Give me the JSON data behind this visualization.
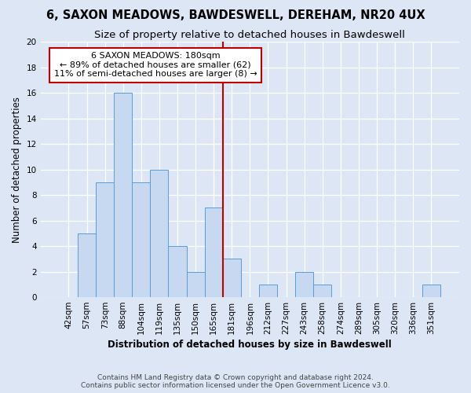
{
  "title_line1": "6, SAXON MEADOWS, BAWDESWELL, DEREHAM, NR20 4UX",
  "title_line2": "Size of property relative to detached houses in Bawdeswell",
  "xlabel": "Distribution of detached houses by size in Bawdeswell",
  "ylabel": "Number of detached properties",
  "categories": [
    "42sqm",
    "57sqm",
    "73sqm",
    "88sqm",
    "104sqm",
    "119sqm",
    "135sqm",
    "150sqm",
    "165sqm",
    "181sqm",
    "196sqm",
    "212sqm",
    "227sqm",
    "243sqm",
    "258sqm",
    "274sqm",
    "289sqm",
    "305sqm",
    "320sqm",
    "336sqm",
    "351sqm"
  ],
  "values": [
    0,
    5,
    9,
    16,
    9,
    10,
    4,
    2,
    7,
    3,
    0,
    1,
    0,
    2,
    1,
    0,
    0,
    0,
    0,
    0,
    1
  ],
  "bar_color": "#c6d9f0",
  "bar_edge_color": "#5b9bd5",
  "vline_color": "#c00000",
  "annotation_text": "6 SAXON MEADOWS: 180sqm\n← 89% of detached houses are smaller (62)\n11% of semi-detached houses are larger (8) →",
  "annotation_box_color": "#ffffff",
  "annotation_box_edge_color": "#c00000",
  "ylim": [
    0,
    20
  ],
  "yticks": [
    0,
    2,
    4,
    6,
    8,
    10,
    12,
    14,
    16,
    18,
    20
  ],
  "background_color": "#dce6f5",
  "grid_color": "#ffffff",
  "footnote_line1": "Contains HM Land Registry data © Crown copyright and database right 2024.",
  "footnote_line2": "Contains public sector information licensed under the Open Government Licence v3.0.",
  "title_fontsize": 10.5,
  "subtitle_fontsize": 9.5,
  "axis_label_fontsize": 8.5,
  "tick_fontsize": 7.5,
  "annotation_fontsize": 8,
  "footnote_fontsize": 6.5
}
